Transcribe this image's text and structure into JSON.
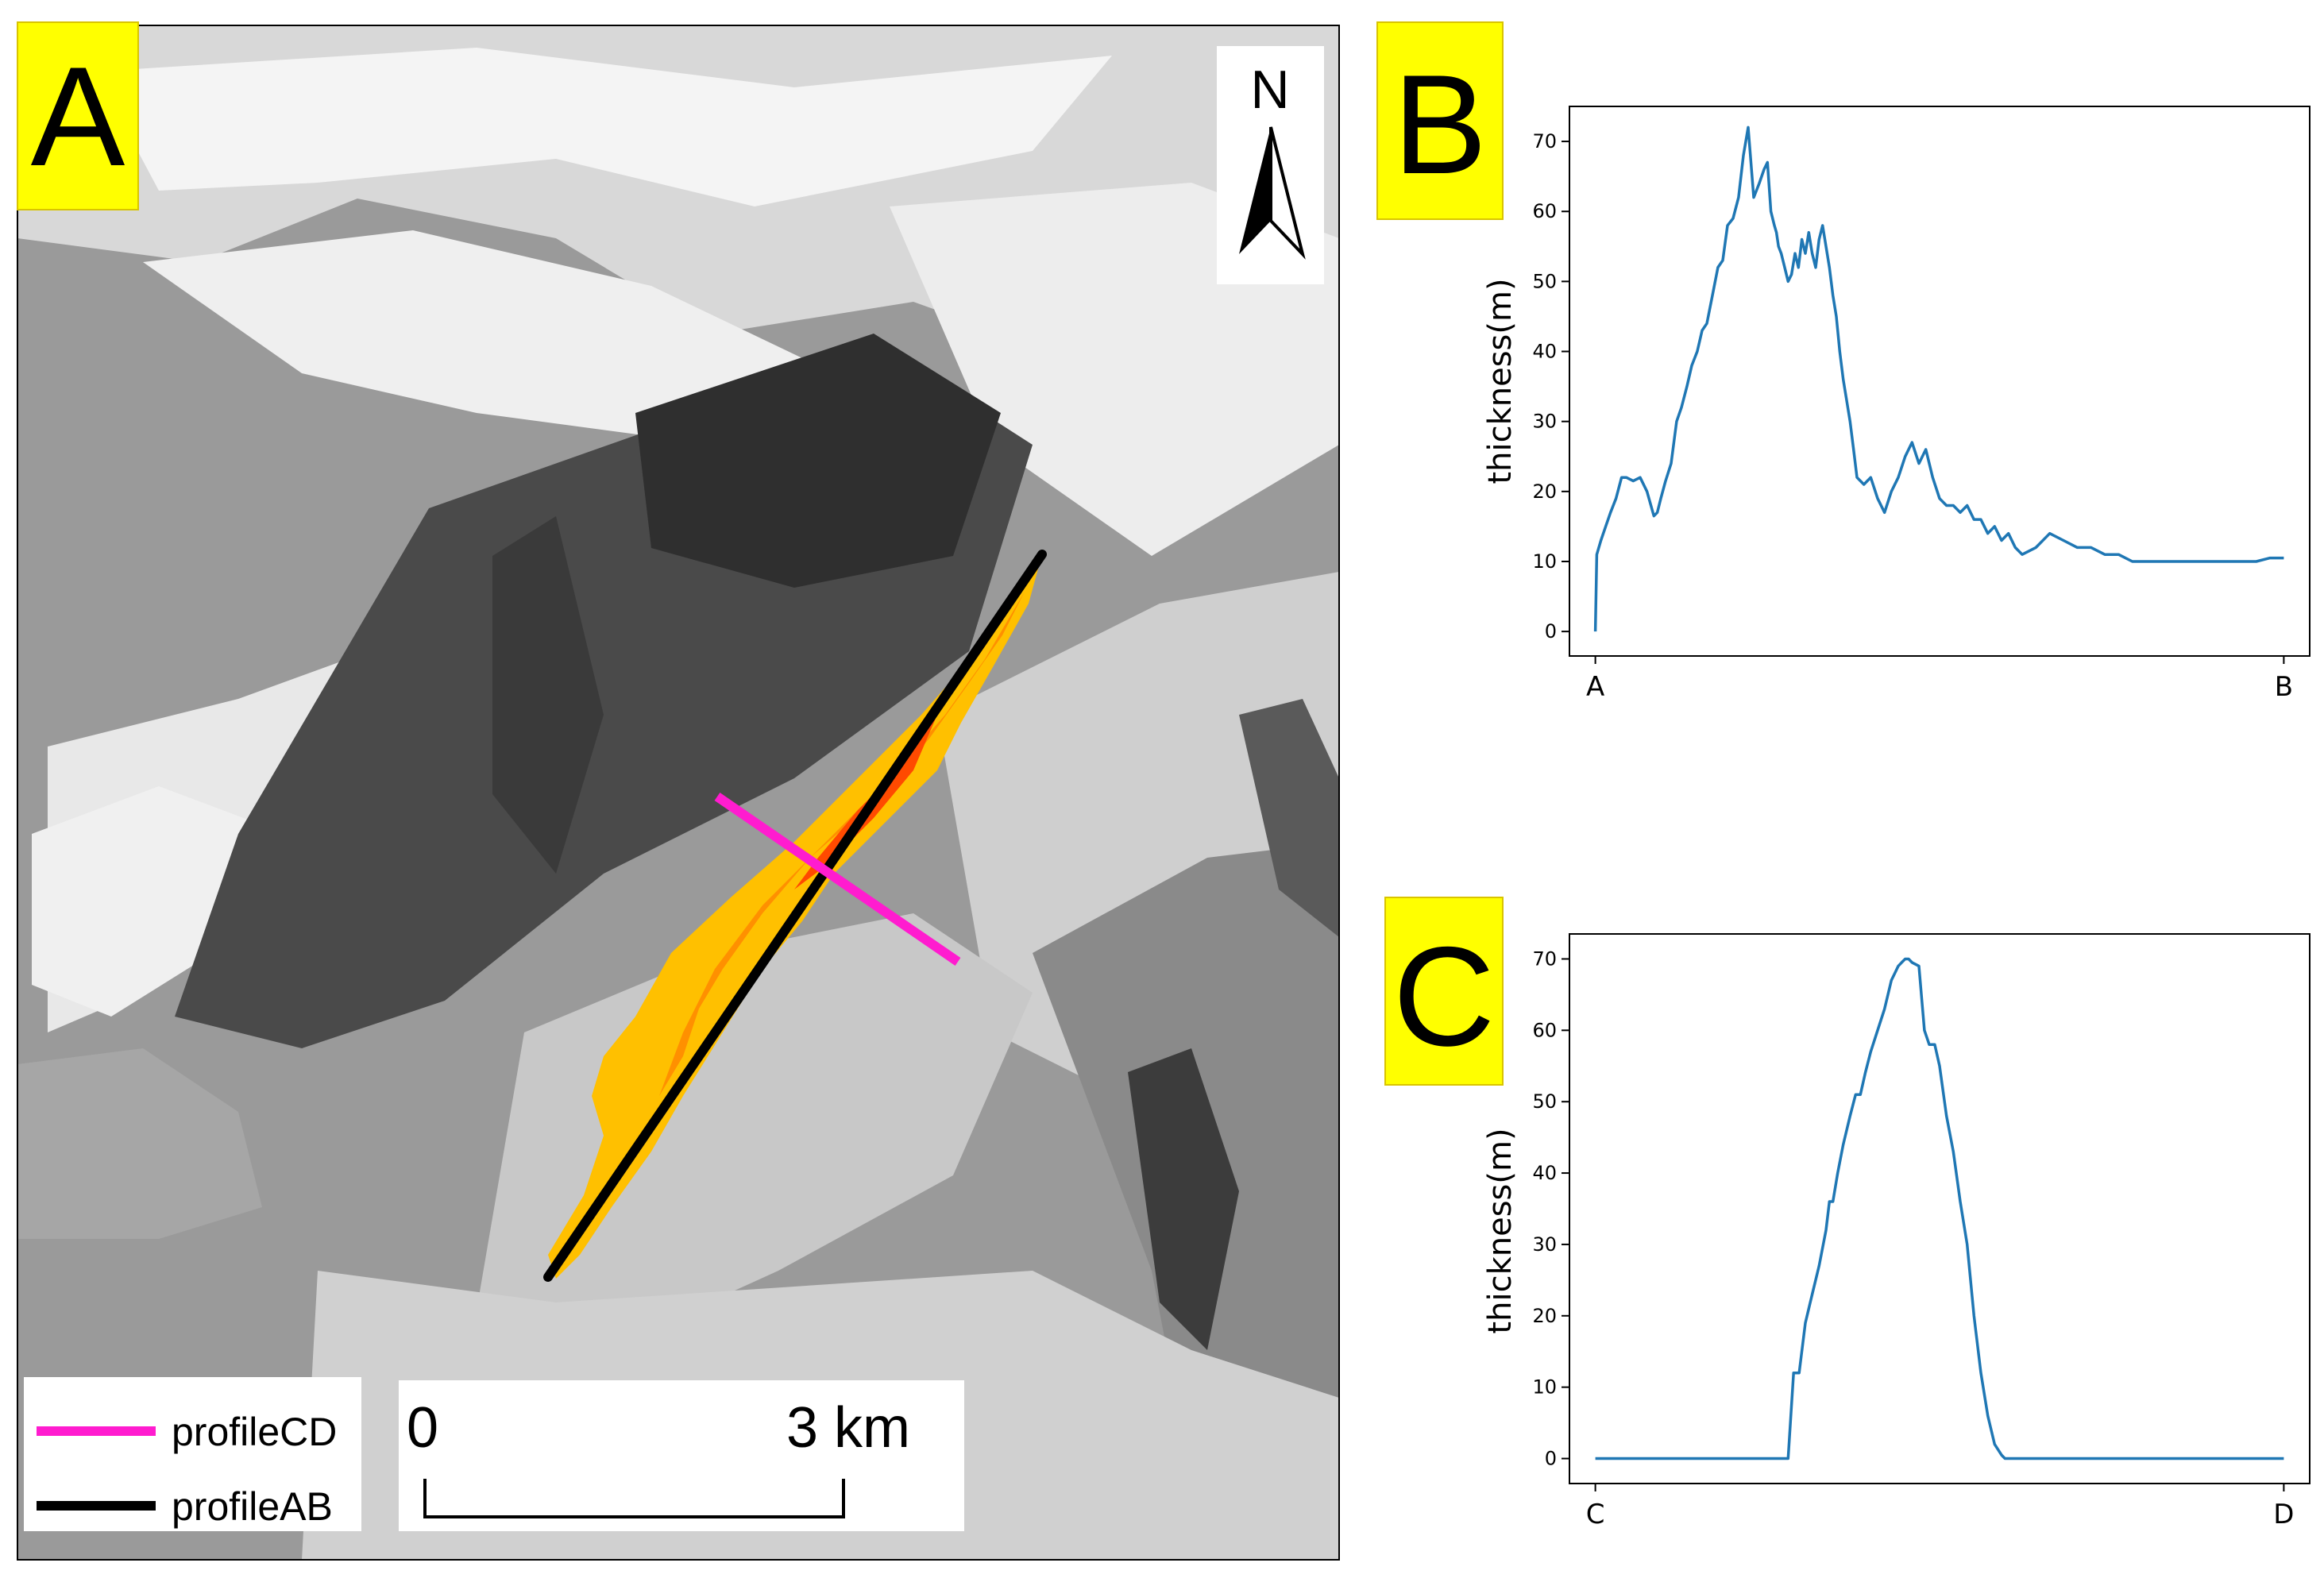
{
  "panels": {
    "map": {
      "panel_label": "A",
      "north_label": "N",
      "scale_start": "0",
      "scale_end": "3 km",
      "legend": [
        {
          "label": "profileCD",
          "color": "#ff1ccf"
        },
        {
          "label": "profileAB",
          "color": "#000000"
        }
      ]
    },
    "b": {
      "panel_label": "B"
    },
    "c": {
      "panel_label": "C"
    }
  },
  "colors": {
    "label_bg": "#ffff00",
    "series": "#1f77b4",
    "flow_outer": "#ffc000",
    "flow_mid": "#ff9000",
    "flow_core": "#ff4a00",
    "hillshade_base": "#8e8e8e",
    "water": "#a6a6a6"
  },
  "chart_data": [
    {
      "type": "line",
      "ylabel": "thickness(m)",
      "xlabel": "",
      "x_tick_labels": [
        "A",
        "B"
      ],
      "xlim": [
        0,
        1
      ],
      "ylim": [
        -3.5,
        75
      ],
      "yticks": [
        0,
        10,
        20,
        30,
        40,
        50,
        60,
        70
      ],
      "series": [
        {
          "x": [
            0.0,
            0.002,
            0.008,
            0.015,
            0.022,
            0.03,
            0.038,
            0.045,
            0.055,
            0.065,
            0.075,
            0.085,
            0.09,
            0.095,
            0.102,
            0.11,
            0.118,
            0.125,
            0.133,
            0.14,
            0.148,
            0.155,
            0.162,
            0.17,
            0.178,
            0.185,
            0.192,
            0.2,
            0.208,
            0.215,
            0.222,
            0.23,
            0.238,
            0.245,
            0.25,
            0.255,
            0.26,
            0.263,
            0.266,
            0.27,
            0.275,
            0.28,
            0.285,
            0.29,
            0.295,
            0.3,
            0.305,
            0.31,
            0.315,
            0.32,
            0.325,
            0.33,
            0.335,
            0.34,
            0.345,
            0.35,
            0.355,
            0.36,
            0.365,
            0.37,
            0.375,
            0.38,
            0.39,
            0.4,
            0.41,
            0.42,
            0.43,
            0.44,
            0.45,
            0.46,
            0.47,
            0.48,
            0.49,
            0.5,
            0.51,
            0.52,
            0.53,
            0.54,
            0.55,
            0.56,
            0.57,
            0.58,
            0.59,
            0.6,
            0.61,
            0.62,
            0.64,
            0.66,
            0.68,
            0.7,
            0.72,
            0.74,
            0.76,
            0.78,
            0.8,
            0.82,
            0.84,
            0.86,
            0.88,
            0.9,
            0.92,
            0.94,
            0.96,
            0.98,
            1.0
          ],
          "y": [
            0,
            11,
            13,
            15,
            17,
            19,
            22,
            22,
            21.5,
            22,
            20,
            16.5,
            17,
            19,
            21.5,
            24,
            30,
            32,
            35,
            38,
            40,
            43,
            44,
            48,
            52,
            53,
            58,
            59,
            62,
            68,
            72,
            62,
            64,
            66,
            67,
            60,
            58,
            57,
            55,
            54,
            52,
            50,
            51,
            54,
            52,
            56,
            54,
            57,
            54,
            52,
            56,
            58,
            55,
            52,
            48,
            45,
            40,
            36,
            33,
            30,
            26,
            22,
            21,
            22,
            19,
            17,
            20,
            22,
            25,
            27,
            24,
            26,
            22,
            19,
            18,
            18,
            17,
            18,
            16,
            16,
            14,
            15,
            13,
            14,
            12,
            11,
            12,
            14,
            13,
            12,
            12,
            11,
            11,
            10,
            10,
            10,
            10,
            10,
            10,
            10,
            10,
            10,
            10,
            10.5,
            10.5
          ]
        }
      ]
    },
    {
      "type": "line",
      "ylabel": "thickness(m)",
      "xlabel": "",
      "x_tick_labels": [
        "C",
        "D"
      ],
      "xlim": [
        0,
        1
      ],
      "ylim": [
        -3.5,
        73.5
      ],
      "yticks": [
        0,
        10,
        20,
        30,
        40,
        50,
        60,
        70
      ],
      "series": [
        {
          "x": [
            0.0,
            0.28,
            0.288,
            0.296,
            0.305,
            0.315,
            0.325,
            0.335,
            0.34,
            0.345,
            0.352,
            0.36,
            0.37,
            0.378,
            0.385,
            0.392,
            0.4,
            0.41,
            0.42,
            0.425,
            0.43,
            0.435,
            0.44,
            0.445,
            0.45,
            0.455,
            0.46,
            0.47,
            0.478,
            0.485,
            0.493,
            0.5,
            0.51,
            0.52,
            0.53,
            0.54,
            0.55,
            0.56,
            0.57,
            0.58,
            0.59,
            0.595,
            0.6,
            0.61,
            1.0
          ],
          "y": [
            0,
            0,
            12,
            12,
            19,
            23,
            27,
            32,
            36,
            36,
            40,
            44,
            48,
            51,
            51,
            54,
            57,
            60,
            63,
            65,
            67,
            68,
            69,
            69.5,
            70,
            70,
            69.5,
            69,
            60,
            58,
            58,
            55,
            48,
            43,
            36,
            30,
            20,
            12,
            6,
            2,
            0.5,
            0,
            0,
            0,
            0
          ]
        }
      ]
    }
  ]
}
